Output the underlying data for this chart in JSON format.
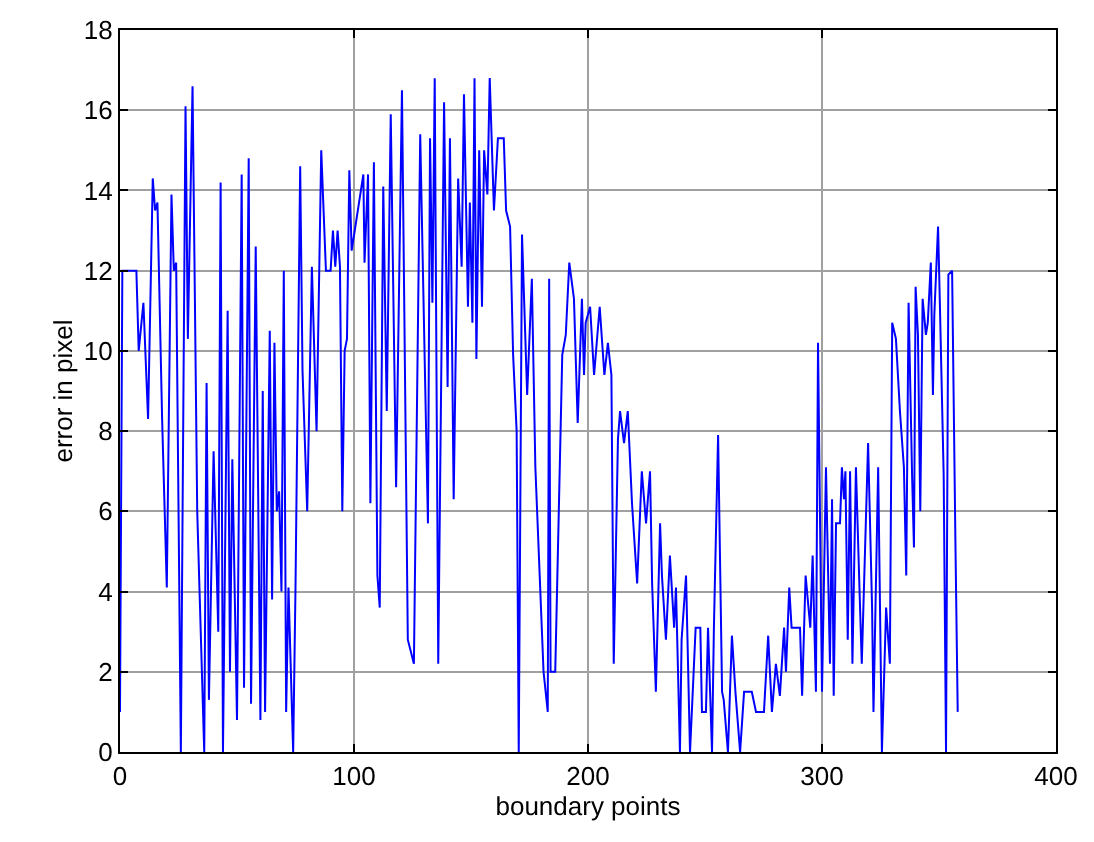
{
  "chart_data": {
    "type": "line",
    "xlabel": "boundary points",
    "ylabel": "error in pixel",
    "x": [
      0,
      1,
      5,
      7,
      8,
      10,
      12,
      14,
      15,
      16,
      18,
      20,
      22,
      23,
      24,
      26,
      28,
      29,
      31,
      33,
      36,
      37,
      38,
      40,
      42,
      43,
      44,
      46,
      47,
      48,
      50,
      52,
      53,
      55,
      56,
      58,
      60,
      61,
      62,
      64,
      65,
      66,
      67,
      68,
      69,
      70,
      71,
      72,
      74,
      75,
      77,
      78,
      80,
      82,
      84,
      86,
      88,
      90,
      91,
      92,
      93,
      94,
      95,
      96,
      97,
      98,
      99,
      104,
      104.5,
      106,
      107,
      108.5,
      110,
      111,
      112.5,
      114,
      115.7,
      118,
      120.5,
      123,
      125.6,
      128.3,
      131.6,
      132.5,
      133.5,
      134.5,
      136,
      138.5,
      140,
      141,
      142.6,
      144.5,
      146,
      147,
      148.7,
      149.5,
      150.6,
      151.5,
      152.3,
      153.5,
      154.7,
      155.6,
      157,
      158,
      159.8,
      161.5,
      164,
      165,
      166.7,
      168,
      169.5,
      170.4,
      171.8,
      174,
      176,
      177.5,
      181,
      182.8,
      183.4,
      184,
      186,
      189,
      190.5,
      192,
      194,
      195.6,
      197.4,
      198.3,
      199,
      200.9,
      202.6,
      205,
      207,
      208.5,
      210,
      211,
      212.8,
      213.7,
      215.4,
      217,
      218.8,
      221,
      223,
      224.8,
      226.5,
      227.4,
      229,
      230.8,
      231.6,
      233.3,
      235,
      236.8,
      237.6,
      239.3,
      240,
      241.9,
      243.6,
      246,
      248,
      248.7,
      250.4,
      251.3,
      253,
      253.8,
      255.6,
      257.3,
      258,
      259.8,
      261.5,
      263,
      265,
      266.7,
      270,
      271.8,
      275.2,
      277,
      278.6,
      280.3,
      282,
      283.8,
      284.6,
      286,
      287,
      290.6,
      291.5,
      293,
      295,
      296,
      297.4,
      298.3,
      300,
      301.7,
      303.4,
      304.3,
      305,
      306,
      307.7,
      308.5,
      309.4,
      310,
      311,
      312,
      313,
      314.5,
      316,
      317,
      319.7,
      321.4,
      322,
      324,
      325.6,
      327.4,
      329,
      330,
      331.6,
      333.3,
      335,
      336,
      337,
      338.5,
      339.3,
      340,
      341,
      342,
      343,
      344.4,
      345.2,
      346.5,
      347.4,
      348,
      349.6,
      350.4,
      352,
      353,
      354,
      355.6,
      357,
      358
    ],
    "series": [
      {
        "color": "#0000ff",
        "values": [
          1,
          12,
          12,
          12,
          10,
          11.2,
          8.3,
          14.3,
          13.5,
          13.7,
          8.3,
          4.1,
          13.9,
          12,
          12.2,
          0,
          16.1,
          10.3,
          16.6,
          6,
          0,
          9.2,
          1.3,
          7.5,
          3,
          14.2,
          0,
          11,
          2,
          7.3,
          0.8,
          14.4,
          1.6,
          14.8,
          1.2,
          12.6,
          0.8,
          9,
          1,
          10.5,
          3.8,
          10.2,
          6,
          6.5,
          4,
          12,
          1,
          4.1,
          0,
          4.1,
          14.6,
          9.5,
          6,
          12.1,
          8,
          15,
          12,
          12,
          13,
          12.1,
          13,
          12.1,
          6,
          10,
          10.3,
          14.5,
          12.5,
          14.4,
          12.2,
          14.4,
          6.2,
          14.7,
          4.4,
          3.6,
          14.1,
          8.5,
          15.9,
          6.6,
          16.5,
          2.8,
          2.2,
          15.4,
          5.7,
          15.3,
          11.2,
          16.8,
          2.2,
          16.2,
          9.1,
          15.3,
          6.3,
          14.3,
          12.1,
          16.4,
          11.1,
          13.7,
          10.7,
          16.8,
          9.8,
          15,
          11.1,
          15,
          13.9,
          16.8,
          13.5,
          15.3,
          15.3,
          13.5,
          13.1,
          9.9,
          8,
          0,
          12.9,
          8.9,
          11.8,
          7.1,
          2,
          1,
          11.8,
          2,
          2,
          9.9,
          10.4,
          12.2,
          11.3,
          8.2,
          11.3,
          9.4,
          10.7,
          11.1,
          9.4,
          11.1,
          9.4,
          10.2,
          9.4,
          2.2,
          7.8,
          8.5,
          7.7,
          8.5,
          6.2,
          4.2,
          7,
          5.7,
          7,
          4.2,
          1.5,
          5.7,
          4.4,
          2.8,
          4.9,
          3.1,
          4.1,
          0,
          2.8,
          4.4,
          0,
          3.1,
          3.1,
          1,
          1,
          3.1,
          0,
          3.1,
          7.9,
          1.5,
          1.3,
          0,
          2.9,
          1.5,
          0,
          1.5,
          1.5,
          1,
          1,
          2.9,
          1,
          2.2,
          1.4,
          3.1,
          2,
          4.1,
          3.1,
          3.1,
          1.4,
          4.4,
          3.1,
          4.9,
          1.5,
          10.2,
          1.5,
          7.1,
          2.2,
          6.3,
          1.4,
          5.7,
          5.7,
          7.1,
          6.3,
          7,
          2.8,
          7,
          2.2,
          7.1,
          4.1,
          2.2,
          7.7,
          3.6,
          1,
          7.1,
          0,
          3.6,
          2.2,
          10.7,
          10.3,
          8.5,
          7.1,
          4.4,
          11.2,
          6.9,
          5.1,
          11.6,
          10.4,
          6,
          11.3,
          10.4,
          10.7,
          12.2,
          8.9,
          10.9,
          13.1,
          11.1,
          6.9,
          0,
          11.9,
          12,
          5.3,
          1
        ]
      }
    ],
    "xlim": [
      0,
      400
    ],
    "xticks": [
      0,
      100,
      200,
      300,
      400
    ],
    "ylim": [
      0,
      18
    ],
    "yticks": [
      0,
      2,
      4,
      6,
      8,
      10,
      12,
      14,
      16,
      18
    ],
    "grid": true,
    "marker": "none",
    "line_style": "solid"
  }
}
